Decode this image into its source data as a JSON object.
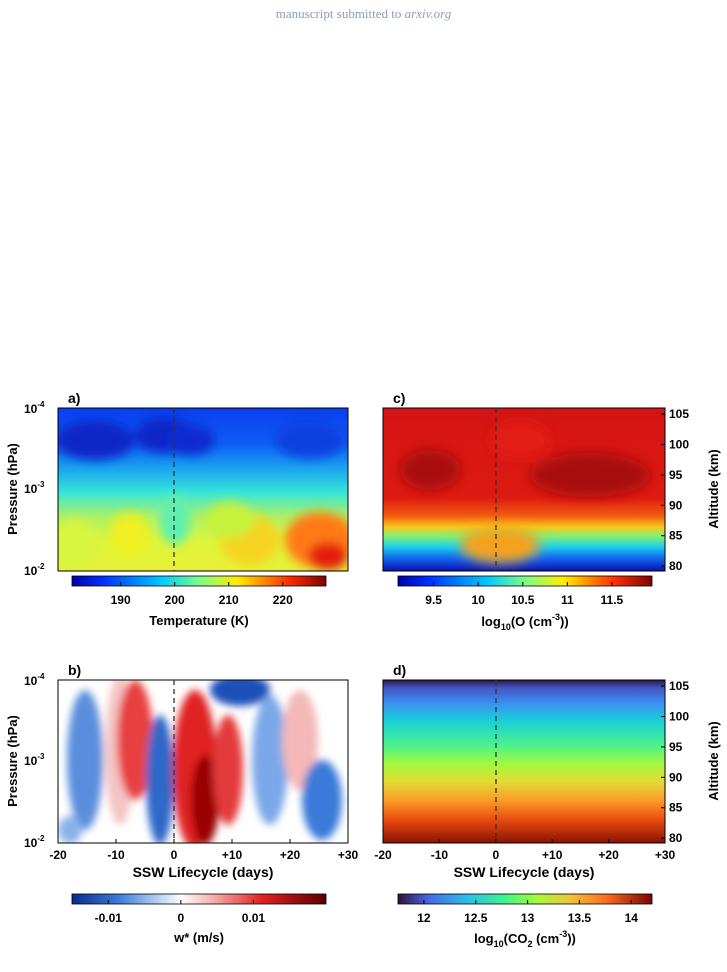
{
  "header": {
    "prefix": "manuscript submitted to",
    "journal": "arxiv.org"
  },
  "chart_data": [
    {
      "panel": "a)",
      "type": "heatmap",
      "xlabel": "",
      "ylabel": "Pressure (hPa)",
      "x_range": [
        -20,
        30
      ],
      "y_ticks": [
        "10-4",
        "10-3",
        "10-2"
      ],
      "y_scale": "log",
      "event_line_x": 0,
      "colorbar": {
        "label": "Temperature (K)",
        "ticks": [
          190,
          200,
          210,
          220
        ],
        "range": [
          181,
          228
        ],
        "colormap": "jet"
      }
    },
    {
      "panel": "b)",
      "type": "heatmap",
      "xlabel": "SSW Lifecycle (days)",
      "ylabel": "Pressure (hPa)",
      "x_range": [
        -20,
        30
      ],
      "x_ticks": [
        "-20",
        "-10",
        "0",
        "+10",
        "+20",
        "+30"
      ],
      "y_ticks": [
        "10-4",
        "10-3",
        "10-2"
      ],
      "y_scale": "log",
      "event_line_x": 0,
      "colorbar": {
        "label": "w* (m/s)",
        "ticks": [
          "-0.01",
          "0",
          "0.01"
        ],
        "range": [
          -0.015,
          0.02
        ],
        "colormap": "blue-white-red"
      }
    },
    {
      "panel": "c)",
      "type": "heatmap",
      "xlabel": "",
      "ylabel": "Altitude (km)",
      "x_range": [
        -20,
        30
      ],
      "y_ticks": [
        105,
        100,
        95,
        90,
        85,
        80
      ],
      "event_line_x": 0,
      "colorbar": {
        "label": "log10(O (cm-3))",
        "ticks": [
          "9.5",
          "10",
          "10.5",
          "11",
          "11.5"
        ],
        "range": [
          9.1,
          11.95
        ],
        "colormap": "jet"
      }
    },
    {
      "panel": "d)",
      "type": "heatmap",
      "xlabel": "SSW Lifecycle (days)",
      "ylabel": "Altitude (km)",
      "x_range": [
        -20,
        30
      ],
      "x_ticks": [
        "-20",
        "-10",
        "0",
        "+10",
        "+20",
        "+30"
      ],
      "y_ticks": [
        105,
        100,
        95,
        90,
        85,
        80
      ],
      "event_line_x": 0,
      "colorbar": {
        "label": "log10(CO2 (cm-3))",
        "ticks": [
          "12",
          "12.5",
          "13",
          "13.5",
          "14"
        ],
        "range": [
          11.75,
          14.2
        ],
        "colormap": "turbo"
      }
    }
  ],
  "labels": {
    "panel_a": "a)",
    "panel_b": "b)",
    "panel_c": "c)",
    "panel_d": "d)",
    "pressure": "Pressure (hPa)",
    "altitude": "Altitude (km)",
    "xlabel": "SSW Lifecycle (days)",
    "cb_temp": "Temperature (K)",
    "cb_w": "w* (m/s)",
    "cb_o_pre": "log",
    "cb_o_sub": "10",
    "cb_o_mid": "(O (cm",
    "cb_o_sup": "-3",
    "cb_o_post": "))",
    "cb_co2_pre": "log",
    "cb_co2_sub": "10",
    "cb_co2_mid": "(CO",
    "cb_co2_sub2": "2",
    "cb_co2_mid2": " (cm",
    "cb_co2_sup": "-3",
    "cb_co2_post": "))"
  }
}
